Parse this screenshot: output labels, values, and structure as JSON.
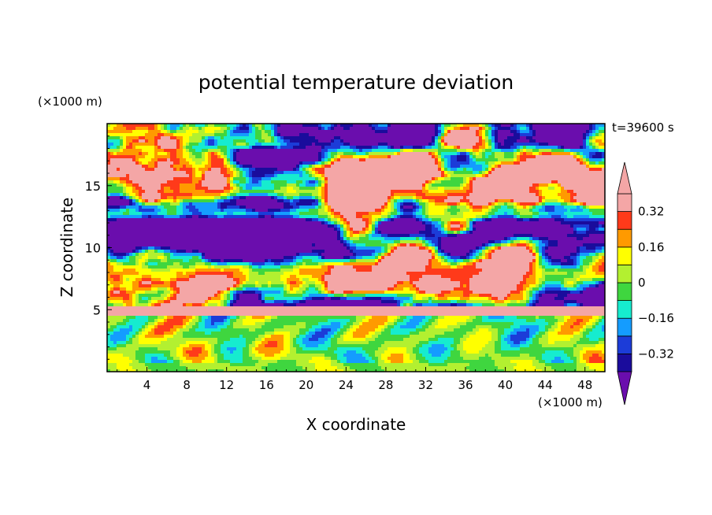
{
  "chart_data": {
    "type": "heatmap",
    "title": "potential temperature deviation",
    "xlabel": "X coordinate",
    "ylabel": "Z coordinate",
    "x_unit": "(×1000 m)",
    "y_unit": "(×1000 m)",
    "time_label": "t=39600 s",
    "xlim": [
      0,
      50
    ],
    "ylim": [
      0,
      20
    ],
    "x_ticks": [
      4,
      8,
      12,
      16,
      20,
      24,
      28,
      32,
      36,
      40,
      44,
      48
    ],
    "y_ticks": [
      5,
      10,
      15
    ],
    "colorbar": {
      "levels": [
        -0.4,
        -0.32,
        -0.24,
        -0.16,
        -0.08,
        0,
        0.08,
        0.16,
        0.24,
        0.32,
        0.4
      ],
      "tick_values": [
        0.32,
        0.16,
        0,
        -0.16,
        -0.32
      ],
      "tick_labels": [
        "0.32",
        "0.16",
        "0",
        "−0.16",
        "−0.32"
      ],
      "colors": [
        "#6a0dad",
        "#1a0c9c",
        "#1c3cd8",
        "#149cff",
        "#16eccf",
        "#3fd63f",
        "#b3f030",
        "#ffff00",
        "#ff9a00",
        "#ff3a1a",
        "#f4a6a6"
      ],
      "extend": "both"
    },
    "field_regions": [
      {
        "layer": "upper",
        "z_range": [
          5,
          20
        ],
        "value_range": [
          -0.44,
          0.44
        ],
        "description_value": "alternating warm (>0.4) and cold (<-0.4) patches with banded near-zero layers"
      },
      {
        "layer": "lower",
        "z_range": [
          0,
          5
        ],
        "value_range": [
          -0.36,
          0.36
        ],
        "description_value": "convective cells, mostly near zero"
      }
    ]
  }
}
